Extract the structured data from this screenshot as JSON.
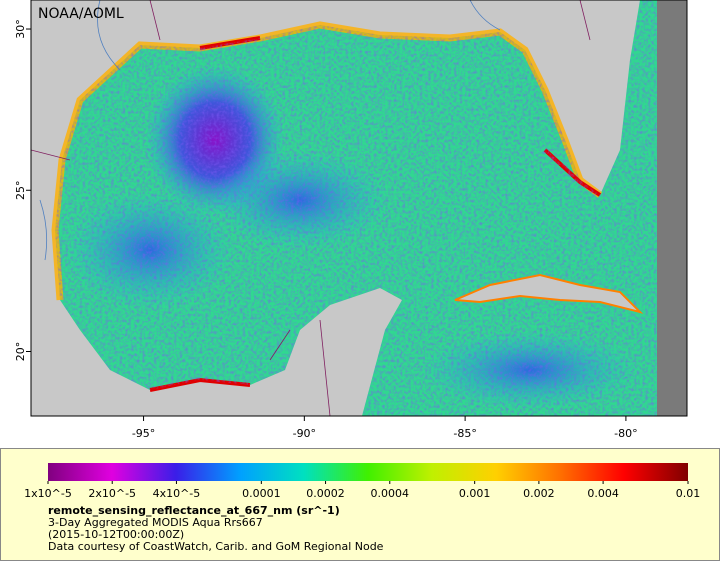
{
  "source": "NOAA/AOML",
  "map": {
    "xlim": [
      -98.5,
      -78.1
    ],
    "ylim": [
      18.0,
      30.9
    ],
    "xticks": [
      {
        "value": -95,
        "label": "-95°"
      },
      {
        "value": -90,
        "label": "-90°"
      },
      {
        "value": -85,
        "label": "-85°"
      },
      {
        "value": -80,
        "label": "-80°"
      }
    ],
    "yticks": [
      {
        "value": 20,
        "label": "20°"
      },
      {
        "value": 25,
        "label": "25°"
      },
      {
        "value": 30,
        "label": "30°"
      }
    ]
  },
  "colorbar": {
    "title": "remote_sensing_reflectance_at_667_nm (sr^-1)",
    "scale": "log",
    "lim": [
      1e-05,
      0.01
    ],
    "colors": [
      "#80007f",
      "#e000e0",
      "#3a1ee8",
      "#00a0ff",
      "#00e0c0",
      "#40f000",
      "#c0f000",
      "#ffd000",
      "#ff7000",
      "#ff0000",
      "#800000"
    ],
    "ticks": [
      {
        "value": 1e-05,
        "label": "1x10^-5"
      },
      {
        "value": 2e-05,
        "label": "2x10^-5"
      },
      {
        "value": 4e-05,
        "label": "4x10^-5"
      },
      0.0001,
      0.0002,
      0.0004,
      0.001,
      0.002,
      0.004,
      0.01
    ]
  },
  "caption": [
    "3-Day Aggregated MODIS Aqua Rrs667",
    "(2015-10-12T00:00:00Z)",
    "Data courtesy of CoastWatch, Carib. and GoM Regional Node"
  ]
}
